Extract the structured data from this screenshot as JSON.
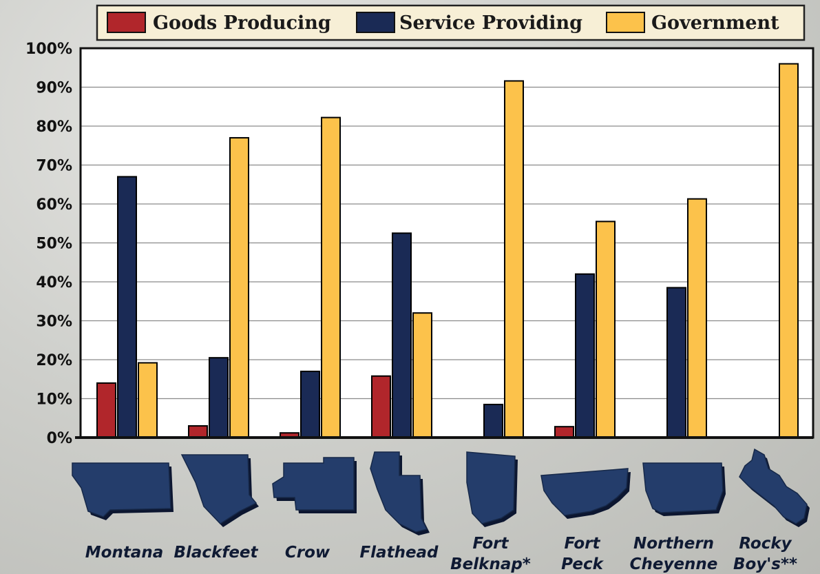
{
  "colors": {
    "goods": "#b1262b",
    "service": "#1a2a55",
    "government": "#fcc24b",
    "plot_bg": "#ffffff",
    "legend_bg": "#f7efd6",
    "shape": "#243d6b"
  },
  "chart_data": {
    "type": "bar",
    "title": "",
    "xlabel": "",
    "ylabel": "",
    "ylim": [
      0,
      100
    ],
    "yticks": [
      "0%",
      "10%",
      "20%",
      "30%",
      "40%",
      "50%",
      "60%",
      "70%",
      "80%",
      "90%",
      "100%"
    ],
    "legend_position": "top",
    "grid": true,
    "categories": [
      [
        "Montana"
      ],
      [
        "Blackfeet"
      ],
      [
        "Crow"
      ],
      [
        "Flathead"
      ],
      [
        "Fort",
        "Belknap*"
      ],
      [
        "Fort",
        "Peck"
      ],
      [
        "Northern",
        "Cheyenne"
      ],
      [
        "Rocky",
        "Boy's**"
      ]
    ],
    "series": [
      {
        "name": "Goods Producing",
        "color_key": "goods",
        "values": [
          14,
          3,
          1.2,
          15.8,
          0,
          2.8,
          0,
          0
        ]
      },
      {
        "name": "Service Providing",
        "color_key": "service",
        "values": [
          67,
          20.5,
          17,
          52.5,
          8.5,
          42,
          38.5,
          0
        ]
      },
      {
        "name": "Government",
        "color_key": "government",
        "values": [
          19.2,
          77,
          82.2,
          32,
          91.6,
          55.5,
          61.3,
          96
        ]
      }
    ]
  }
}
